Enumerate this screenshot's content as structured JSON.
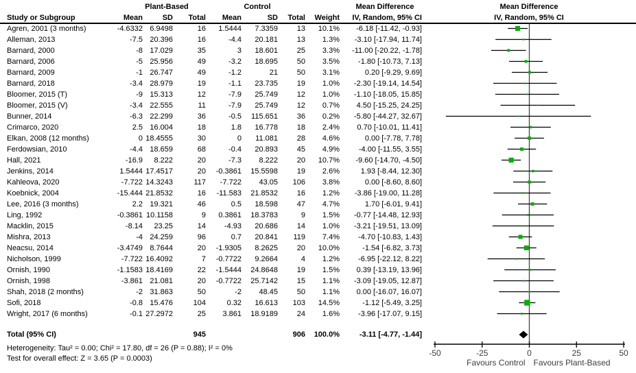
{
  "chart_data": {
    "type": "forest",
    "headers": {
      "group1": "Plant-Based",
      "group2": "Control",
      "study": "Study or Subgroup",
      "mean": "Mean",
      "sd": "SD",
      "total": "Total",
      "weight": "Weight",
      "md_text_line1": "Mean Difference",
      "md_text_line2": "IV, Random, 95% CI",
      "md_plot_line1": "Mean Difference",
      "md_plot_line2": "IV, Random, 95% CI"
    },
    "studies": [
      {
        "name": "Agren, 2001 (3 months)",
        "mean1": "-4.6332",
        "sd1": "6.9498",
        "n1": "16",
        "mean2": "1.5444",
        "sd2": "7.3359",
        "n2": "13",
        "weight": "10.1%",
        "ci": "-6.18 [-11.42, -0.93]",
        "md": -6.18,
        "lo": -11.42,
        "hi": -0.93,
        "w": 10.1
      },
      {
        "name": "Alleman, 2013",
        "mean1": "-7.5",
        "sd1": "20.396",
        "n1": "16",
        "mean2": "-4.4",
        "sd2": "20.181",
        "n2": "13",
        "weight": "1.3%",
        "ci": "-3.10 [-17.94, 11.74]",
        "md": -3.1,
        "lo": -17.94,
        "hi": 11.74,
        "w": 1.3
      },
      {
        "name": "Barnard, 2000",
        "mean1": "-8",
        "sd1": "17.029",
        "n1": "35",
        "mean2": "3",
        "sd2": "18.601",
        "n2": "25",
        "weight": "3.3%",
        "ci": "-11.00 [-20.22, -1.78]",
        "md": -11.0,
        "lo": -20.22,
        "hi": -1.78,
        "w": 3.3
      },
      {
        "name": "Barnard, 2006",
        "mean1": "-5",
        "sd1": "25.956",
        "n1": "49",
        "mean2": "-3.2",
        "sd2": "18.695",
        "n2": "50",
        "weight": "3.5%",
        "ci": "-1.80 [-10.73, 7.13]",
        "md": -1.8,
        "lo": -10.73,
        "hi": 7.13,
        "w": 3.5
      },
      {
        "name": "Barnard, 2009",
        "mean1": "-1",
        "sd1": "26.747",
        "n1": "49",
        "mean2": "-1.2",
        "sd2": "21",
        "n2": "50",
        "weight": "3.1%",
        "ci": "0.20 [-9.29, 9.69]",
        "md": 0.2,
        "lo": -9.29,
        "hi": 9.69,
        "w": 3.1
      },
      {
        "name": "Barnard, 2018",
        "mean1": "-3.4",
        "sd1": "28.979",
        "n1": "19",
        "mean2": "-1.1",
        "sd2": "23.735",
        "n2": "19",
        "weight": "1.0%",
        "ci": "-2.30 [-19.14, 14.54]",
        "md": -2.3,
        "lo": -19.14,
        "hi": 14.54,
        "w": 1.0
      },
      {
        "name": "Bloomer, 2015 (T)",
        "mean1": "-9",
        "sd1": "15.313",
        "n1": "12",
        "mean2": "-7.9",
        "sd2": "25.749",
        "n2": "12",
        "weight": "1.0%",
        "ci": "-1.10 [-18.05, 15.85]",
        "md": -1.1,
        "lo": -18.05,
        "hi": 15.85,
        "w": 1.0
      },
      {
        "name": "Bloomer, 2015 (V)",
        "mean1": "-3.4",
        "sd1": "22.555",
        "n1": "11",
        "mean2": "-7.9",
        "sd2": "25.749",
        "n2": "12",
        "weight": "0.7%",
        "ci": "4.50 [-15.25, 24.25]",
        "md": 4.5,
        "lo": -15.25,
        "hi": 24.25,
        "w": 0.7
      },
      {
        "name": "Bunner, 2014",
        "mean1": "-6.3",
        "sd1": "22.299",
        "n1": "36",
        "mean2": "-0.5",
        "sd2": "115.651",
        "n2": "36",
        "weight": "0.2%",
        "ci": "-5.80 [-44.27, 32.67]",
        "md": -5.8,
        "lo": -44.27,
        "hi": 32.67,
        "w": 0.2
      },
      {
        "name": "Crimarco, 2020",
        "mean1": "2.5",
        "sd1": "16.004",
        "n1": "18",
        "mean2": "1.8",
        "sd2": "16.778",
        "n2": "18",
        "weight": "2.4%",
        "ci": "0.70 [-10.01, 11.41]",
        "md": 0.7,
        "lo": -10.01,
        "hi": 11.41,
        "w": 2.4
      },
      {
        "name": "Elkan, 2008 (12 months)",
        "mean1": "0",
        "sd1": "18.4555",
        "n1": "30",
        "mean2": "0",
        "sd2": "11.081",
        "n2": "28",
        "weight": "4.6%",
        "ci": "0.00 [-7.78, 7.78]",
        "md": 0.0,
        "lo": -7.78,
        "hi": 7.78,
        "w": 4.6
      },
      {
        "name": "Ferdowsian, 2010",
        "mean1": "-4.4",
        "sd1": "18.659",
        "n1": "68",
        "mean2": "-0.4",
        "sd2": "20.893",
        "n2": "45",
        "weight": "4.9%",
        "ci": "-4.00 [-11.55, 3.55]",
        "md": -4.0,
        "lo": -11.55,
        "hi": 3.55,
        "w": 4.9
      },
      {
        "name": "Hall, 2021",
        "mean1": "-16.9",
        "sd1": "8.222",
        "n1": "20",
        "mean2": "-7.3",
        "sd2": "8.222",
        "n2": "20",
        "weight": "10.7%",
        "ci": "-9.60 [-14.70, -4.50]",
        "md": -9.6,
        "lo": -14.7,
        "hi": -4.5,
        "w": 10.7
      },
      {
        "name": "Jenkins, 2014",
        "mean1": "1.5444",
        "sd1": "17.4517",
        "n1": "20",
        "mean2": "-0.3861",
        "sd2": "15.5598",
        "n2": "19",
        "weight": "2.6%",
        "ci": "1.93 [-8.44, 12.30]",
        "md": 1.93,
        "lo": -8.44,
        "hi": 12.3,
        "w": 2.6
      },
      {
        "name": "Kahleova, 2020",
        "mean1": "-7.722",
        "sd1": "14.3243",
        "n1": "117",
        "mean2": "-7.722",
        "sd2": "43.05",
        "n2": "106",
        "weight": "3.8%",
        "ci": "0.00 [-8.60, 8.60]",
        "md": 0.0,
        "lo": -8.6,
        "hi": 8.6,
        "w": 3.8
      },
      {
        "name": "Koebnick, 2004",
        "mean1": "-15.444",
        "sd1": "21.8532",
        "n1": "16",
        "mean2": "-11.583",
        "sd2": "21.8532",
        "n2": "16",
        "weight": "1.2%",
        "ci": "-3.86 [-19.00, 11.28]",
        "md": -3.86,
        "lo": -19.0,
        "hi": 11.28,
        "w": 1.2
      },
      {
        "name": "Lee, 2016 (3 months)",
        "mean1": "2.2",
        "sd1": "19.321",
        "n1": "46",
        "mean2": "0.5",
        "sd2": "18.598",
        "n2": "47",
        "weight": "4.7%",
        "ci": "1.70 [-6.01, 9.41]",
        "md": 1.7,
        "lo": -6.01,
        "hi": 9.41,
        "w": 4.7
      },
      {
        "name": "Ling, 1992",
        "mean1": "-0.3861",
        "sd1": "10.1158",
        "n1": "9",
        "mean2": "0.3861",
        "sd2": "18.3783",
        "n2": "9",
        "weight": "1.5%",
        "ci": "-0.77 [-14.48, 12.93]",
        "md": -0.77,
        "lo": -14.48,
        "hi": 12.93,
        "w": 1.5
      },
      {
        "name": "Macklin, 2015",
        "mean1": "-8.14",
        "sd1": "23.25",
        "n1": "14",
        "mean2": "-4.93",
        "sd2": "20.686",
        "n2": "14",
        "weight": "1.0%",
        "ci": "-3.21 [-19.51, 13.09]",
        "md": -3.21,
        "lo": -19.51,
        "hi": 13.09,
        "w": 1.0
      },
      {
        "name": "Mishra, 2013",
        "mean1": "-4",
        "sd1": "24.259",
        "n1": "96",
        "mean2": "0.7",
        "sd2": "20.841",
        "n2": "119",
        "weight": "7.4%",
        "ci": "-4.70 [-10.83, 1.43]",
        "md": -4.7,
        "lo": -10.83,
        "hi": 1.43,
        "w": 7.4
      },
      {
        "name": "Neacsu, 2014",
        "mean1": "-3.4749",
        "sd1": "8.7644",
        "n1": "20",
        "mean2": "-1.9305",
        "sd2": "8.2625",
        "n2": "20",
        "weight": "10.0%",
        "ci": "-1.54 [-6.82, 3.73]",
        "md": -1.54,
        "lo": -6.82,
        "hi": 3.73,
        "w": 10.0
      },
      {
        "name": "Nicholson, 1999",
        "mean1": "-7.722",
        "sd1": "16.4092",
        "n1": "7",
        "mean2": "-0.7722",
        "sd2": "9.2664",
        "n2": "4",
        "weight": "1.2%",
        "ci": "-6.95 [-22.12, 8.22]",
        "md": -6.95,
        "lo": -22.12,
        "hi": 8.22,
        "w": 1.2
      },
      {
        "name": "Ornish, 1990",
        "mean1": "-1.1583",
        "sd1": "18.4169",
        "n1": "22",
        "mean2": "-1.5444",
        "sd2": "24.8648",
        "n2": "19",
        "weight": "1.5%",
        "ci": "0.39 [-13.19, 13.96]",
        "md": 0.39,
        "lo": -13.19,
        "hi": 13.96,
        "w": 1.5
      },
      {
        "name": "Ornish, 1998",
        "mean1": "-3.861",
        "sd1": "21.081",
        "n1": "20",
        "mean2": "-0.7722",
        "sd2": "25.7142",
        "n2": "15",
        "weight": "1.1%",
        "ci": "-3.09 [-19.05, 12.87]",
        "md": -3.09,
        "lo": -19.05,
        "hi": 12.87,
        "w": 1.1
      },
      {
        "name": "Shah, 2018 (2 months)",
        "mean1": "-2",
        "sd1": "31.863",
        "n1": "50",
        "mean2": "-2",
        "sd2": "48.45",
        "n2": "50",
        "weight": "1.1%",
        "ci": "0.00 [-16.07, 16.07]",
        "md": 0.0,
        "lo": -16.07,
        "hi": 16.07,
        "w": 1.1
      },
      {
        "name": "Sofi, 2018",
        "mean1": "-0.8",
        "sd1": "15.476",
        "n1": "104",
        "mean2": "0.32",
        "sd2": "16.613",
        "n2": "103",
        "weight": "14.5%",
        "ci": "-1.12 [-5.49, 3.25]",
        "md": -1.12,
        "lo": -5.49,
        "hi": 3.25,
        "w": 14.5
      },
      {
        "name": "Wright, 2017 (6 months)",
        "mean1": "-0.1",
        "sd1": "27.2972",
        "n1": "25",
        "mean2": "3.861",
        "sd2": "18.9189",
        "n2": "24",
        "weight": "1.6%",
        "ci": "-3.96 [-17.07, 9.15]",
        "md": -3.96,
        "lo": -17.07,
        "hi": 9.15,
        "w": 1.6
      }
    ],
    "total_row": {
      "label": "Total (95% CI)",
      "n1": "945",
      "n2": "906",
      "weight": "100.0%",
      "ci": "-3.11 [-4.77, -1.44]",
      "md": -3.11,
      "lo": -4.77,
      "hi": -1.44
    },
    "footnotes": {
      "heterogeneity": "Heterogeneity: Tau² = 0.00; Chi² = 17.80, df = 26 (P = 0.88); I² = 0%",
      "overall_effect": "Test for overall effect: Z = 3.65 (P = 0.0003)"
    },
    "axis": {
      "min": -50,
      "max": 50,
      "ticks": [
        "-50",
        "-25",
        "0",
        "25",
        "50"
      ],
      "tick_values": [
        -50,
        -25,
        0,
        25,
        50
      ],
      "favours_left": "Favours Control",
      "favours_right": "Favours Plant-Based"
    },
    "colors": {
      "marker_green": "#00b000",
      "diamond_black": "#000000",
      "ci_line": "#000000",
      "zero_line": "#444444",
      "axis_text": "#3d3d3d"
    }
  }
}
